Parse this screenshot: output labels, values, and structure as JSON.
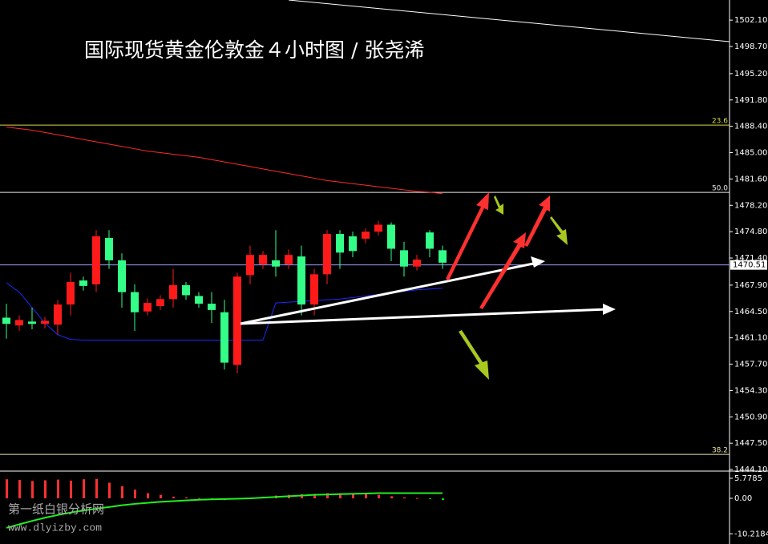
{
  "chart_data": {
    "type": "candlestick",
    "title": "国际现货黄金伦敦金４小时图 / 张尧浠",
    "watermark": [
      "第一纸白银分析网",
      "www.dlyizby.com"
    ],
    "up_color": "#ff1a1a",
    "down_color": "#33ff88",
    "open": [
      1463.7,
      1462.7,
      1463.2,
      1462.9,
      1462.8,
      1465.4,
      1468.5,
      1468.0,
      1474.0,
      1471.1,
      1467.0,
      1464.5,
      1465.2,
      1466.1,
      1467.9,
      1466.5,
      1465.5,
      1464.4,
      1457.6,
      1469.2,
      1470.6,
      1471.1,
      1470.6,
      1471.6,
      1465.4,
      1469.3,
      1474.5,
      1474.2,
      1473.9,
      1474.8,
      1475.7,
      1472.4,
      1470.3,
      1474.7,
      1472.4
    ],
    "close": [
      1462.9,
      1463.4,
      1462.9,
      1463.3,
      1465.4,
      1468.3,
      1467.8,
      1474.2,
      1471.1,
      1467.0,
      1464.4,
      1465.6,
      1466.1,
      1467.9,
      1466.6,
      1465.5,
      1464.7,
      1457.9,
      1469.0,
      1471.8,
      1471.8,
      1470.3,
      1471.8,
      1465.4,
      1469.3,
      1474.5,
      1472.1,
      1472.3,
      1474.8,
      1475.7,
      1472.6,
      1470.3,
      1471.2,
      1472.6,
      1470.8
    ],
    "high": [
      1465.5,
      1464.0,
      1465.0,
      1463.8,
      1466.0,
      1469.5,
      1469.0,
      1475.0,
      1475.0,
      1472.0,
      1468.0,
      1466.2,
      1466.6,
      1470.0,
      1468.3,
      1467.0,
      1467.0,
      1466.0,
      1469.5,
      1473.0,
      1472.3,
      1475.0,
      1472.5,
      1473.0,
      1470.0,
      1475.0,
      1475.0,
      1474.8,
      1475.2,
      1476.2,
      1476.0,
      1473.5,
      1471.8,
      1475.0,
      1473.0
    ],
    "low": [
      1461.0,
      1462.0,
      1462.2,
      1462.3,
      1461.5,
      1464.0,
      1467.2,
      1467.0,
      1470.0,
      1465.0,
      1462.0,
      1464.0,
      1464.7,
      1465.0,
      1466.0,
      1465.0,
      1463.0,
      1457.0,
      1456.5,
      1468.0,
      1470.0,
      1469.0,
      1470.0,
      1464.0,
      1464.0,
      1468.0,
      1470.0,
      1471.5,
      1473.3,
      1474.3,
      1471.0,
      1469.0,
      1469.8,
      1471.5,
      1470.0
    ],
    "lines": [
      {
        "color": "#ff2a2a",
        "values": [
          1488.3,
          1488.1,
          1487.9,
          1487.6,
          1487.3,
          1487.0,
          1486.7,
          1486.4,
          1486.1,
          1485.8,
          1485.5,
          1485.2,
          1485.0,
          1484.8,
          1484.6,
          1484.4,
          1484.1,
          1483.8,
          1483.5,
          1483.2,
          1482.9,
          1482.6,
          1482.3,
          1482.0,
          1481.7,
          1481.4,
          1481.2,
          1481.0,
          1480.8,
          1480.6,
          1480.4,
          1480.2,
          1480.0,
          1479.9,
          1479.7
        ]
      },
      {
        "color": "#1a2aff",
        "values": [
          1468.2,
          1467,
          1465,
          1463,
          1461.5,
          1460.9,
          1460.8,
          1460.8,
          1460.8,
          1460.8,
          1460.8,
          1460.8,
          1460.8,
          1460.8,
          1460.8,
          1460.8,
          1460.8,
          1460.8,
          1460.8,
          1460.8,
          1460.8,
          1465.6,
          1465.7,
          1465.8,
          1465.9,
          1466,
          1466.1,
          1466.3,
          1466.5,
          1466.7,
          1466.9,
          1467.1,
          1467.3,
          1467.4,
          1467.5
        ]
      }
    ],
    "ylim": [
      1443.9,
      1504.7
    ],
    "yticks": [
      {
        "value": 1502.1,
        "label": "1502.10"
      },
      {
        "value": 1498.7,
        "label": "1498.70"
      },
      {
        "value": 1495.2,
        "label": "1495.20"
      },
      {
        "value": 1491.8,
        "label": "1491.80"
      },
      {
        "value": 1488.4,
        "label": "1488.40"
      },
      {
        "value": 1485.0,
        "label": "1485.00"
      },
      {
        "value": 1481.6,
        "label": "1481.60"
      },
      {
        "value": 1478.2,
        "label": "1478.20"
      },
      {
        "value": 1474.8,
        "label": "1474.80"
      },
      {
        "value": 1471.4,
        "label": "1471.40"
      },
      {
        "value": 1467.9,
        "label": "1467.90"
      },
      {
        "value": 1464.5,
        "label": "1464.50"
      },
      {
        "value": 1461.1,
        "label": "1461.10"
      },
      {
        "value": 1457.7,
        "label": "1457.70"
      },
      {
        "value": 1454.3,
        "label": "1454.30"
      },
      {
        "value": 1450.9,
        "label": "1450.90"
      },
      {
        "value": 1447.5,
        "label": "1447.50"
      },
      {
        "value": 1444.1,
        "label": "1444.10"
      }
    ],
    "levels": [
      {
        "value": 1488.56,
        "label": "23.6",
        "color": "#d8d84a"
      },
      {
        "value": 1479.87,
        "label": "50.0",
        "color": "#e8e8e8"
      },
      {
        "value": 1446.06,
        "label": "38.2",
        "color": "#e8e8a0"
      }
    ],
    "current_price": {
      "value": 1470.51,
      "label": "1470.51",
      "color": "#9aa0ff"
    },
    "macd": {
      "ylim": [
        -13.16,
        7.39
      ],
      "yticks": [
        5.7785,
        {
          "value": 0,
          "label": "0.00"
        },
        -10.2184
      ],
      "pos_color": "#ff3030",
      "neg_color": "#00e000",
      "signal_color": "#22ee22",
      "histogram": [
        5.5,
        5.3,
        5.0,
        5.2,
        5.4,
        5.1,
        5.5,
        5.6,
        4.5,
        3.5,
        2.5,
        1.5,
        1.0,
        0.5,
        0.3,
        0.1,
        -0.2,
        -0.5,
        -0.3,
        0.2,
        0.5,
        0.8,
        1.0,
        1.2,
        1.3,
        1.5,
        1.5,
        1.4,
        1.2,
        1.0,
        0.6,
        0.3,
        0.1,
        -0.2,
        -0.5
      ],
      "signal": [
        -8.5,
        -7.5,
        -6.5,
        -5.6,
        -4.8,
        -4.1,
        -3.5,
        -3,
        -2.5,
        -2,
        -1.6,
        -1.3,
        -1,
        -0.8,
        -0.6,
        -0.4,
        -0.3,
        -0.2,
        -0.1,
        0,
        0.2,
        0.4,
        0.6,
        0.8,
        1,
        1.1,
        1.2,
        1.3,
        1.4,
        1.5,
        1.5,
        1.5,
        1.5,
        1.5,
        1.5
      ]
    }
  }
}
